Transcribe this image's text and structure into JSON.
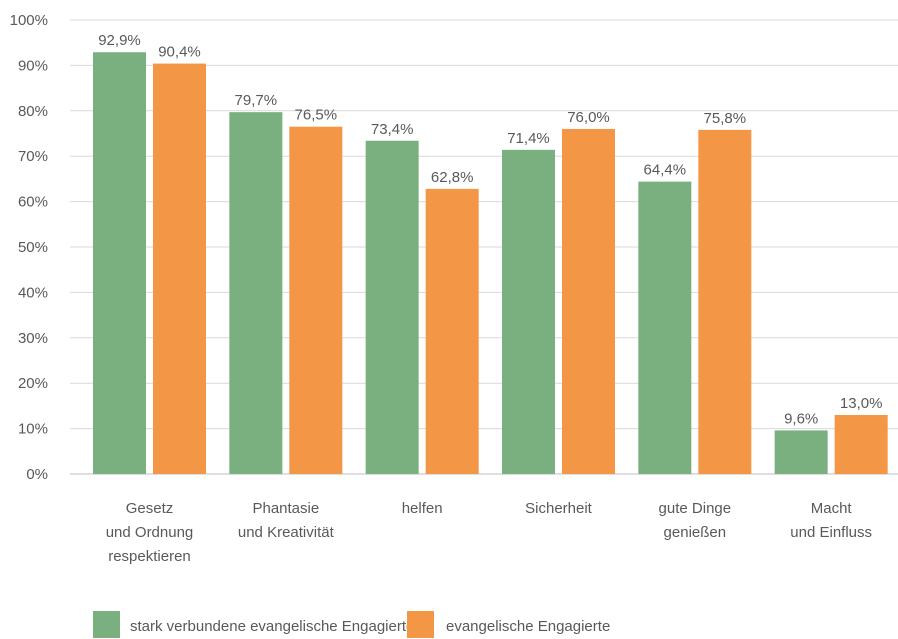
{
  "chart_data": {
    "type": "bar",
    "categories": [
      [
        "Gesetz",
        "und Ordnung",
        "respektieren"
      ],
      [
        "Phantasie",
        "und Kreativität"
      ],
      [
        "helfen"
      ],
      [
        "Sicherheit"
      ],
      [
        "gute Dinge",
        "genießen"
      ],
      [
        "Macht",
        "und Einfluss"
      ]
    ],
    "series": [
      {
        "name": "stark verbundene evangelische Engagierte",
        "color": "#7aaf80",
        "values": [
          92.9,
          79.7,
          73.4,
          71.4,
          64.4,
          9.6
        ],
        "labels": [
          "92,9%",
          "79,7%",
          "73,4%",
          "71,4%",
          "64,4%",
          "9,6%"
        ]
      },
      {
        "name": "evangelische Engagierte",
        "color": "#f39646",
        "values": [
          90.4,
          76.5,
          62.8,
          76.0,
          75.8,
          13.0
        ],
        "labels": [
          "90,4%",
          "76,5%",
          "62,8%",
          "76,0%",
          "75,8%",
          "13,0%"
        ]
      }
    ],
    "yticks": [
      0,
      10,
      20,
      30,
      40,
      50,
      60,
      70,
      80,
      90,
      100
    ],
    "ytick_labels": [
      "0%",
      "10%",
      "20%",
      "30%",
      "40%",
      "50%",
      "60%",
      "70%",
      "80%",
      "90%",
      "100%"
    ],
    "ylim": [
      0,
      100
    ],
    "grid": true,
    "legend_position": "bottom-left"
  }
}
